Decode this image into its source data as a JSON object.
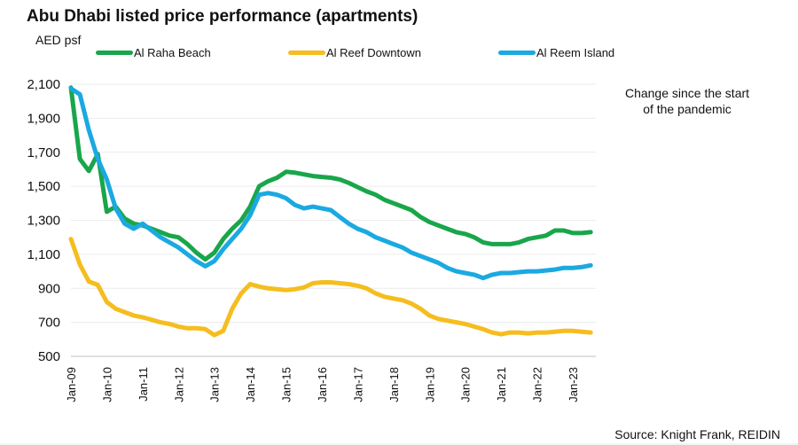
{
  "chart_data": {
    "type": "line",
    "title": "Abu Dhabi listed price performance (apartments)",
    "ylabel": "AED psf",
    "xlabel": "",
    "ylim": [
      500,
      2100
    ],
    "yticks": [
      2100,
      1900,
      1700,
      1500,
      1300,
      1100,
      900,
      700,
      500
    ],
    "ytick_labels": [
      "2,100",
      "1,900",
      "1,700",
      "1,500",
      "1,300",
      "1,100",
      "900",
      "700",
      "500"
    ],
    "xlim_years": [
      2009.0,
      2023.6
    ],
    "xticks": [
      "Jan-09",
      "Jan-10",
      "Jan-11",
      "Jan-12",
      "Jan-13",
      "Jan-14",
      "Jan-15",
      "Jan-16",
      "Jan-17",
      "Jan-18",
      "Jan-19",
      "Jan-20",
      "Jan-21",
      "Jan-22",
      "Jan-23"
    ],
    "grid": true,
    "legend_position": "top",
    "x": [
      2009.0,
      2009.25,
      2009.5,
      2009.75,
      2010.0,
      2010.25,
      2010.5,
      2010.75,
      2011.0,
      2011.25,
      2011.5,
      2011.75,
      2012.0,
      2012.25,
      2012.5,
      2012.75,
      2013.0,
      2013.25,
      2013.5,
      2013.75,
      2014.0,
      2014.25,
      2014.5,
      2014.75,
      2015.0,
      2015.25,
      2015.5,
      2015.75,
      2016.0,
      2016.25,
      2016.5,
      2016.75,
      2017.0,
      2017.25,
      2017.5,
      2017.75,
      2018.0,
      2018.25,
      2018.5,
      2018.75,
      2019.0,
      2019.25,
      2019.5,
      2019.75,
      2020.0,
      2020.25,
      2020.5,
      2020.75,
      2021.0,
      2021.25,
      2021.5,
      2021.75,
      2022.0,
      2022.25,
      2022.5,
      2022.75,
      2023.0,
      2023.25,
      2023.5
    ],
    "series": [
      {
        "name": "Al Raha Beach",
        "color": "#19a64a",
        "values": [
          2080,
          1660,
          1590,
          1690,
          1350,
          1380,
          1310,
          1280,
          1270,
          1250,
          1230,
          1210,
          1200,
          1160,
          1110,
          1070,
          1110,
          1190,
          1250,
          1300,
          1380,
          1500,
          1530,
          1550,
          1585,
          1580,
          1570,
          1560,
          1555,
          1550,
          1540,
          1520,
          1495,
          1470,
          1450,
          1420,
          1400,
          1380,
          1360,
          1320,
          1290,
          1270,
          1250,
          1230,
          1220,
          1200,
          1170,
          1160,
          1160,
          1160,
          1170,
          1190,
          1200,
          1210,
          1240,
          1240,
          1225,
          1225,
          1230
        ]
      },
      {
        "name": "Al Reef Downtown",
        "color": "#f5bd1f",
        "values": [
          1190,
          1040,
          940,
          920,
          820,
          780,
          760,
          740,
          730,
          715,
          700,
          690,
          675,
          665,
          665,
          660,
          625,
          650,
          780,
          870,
          925,
          910,
          900,
          895,
          890,
          895,
          905,
          930,
          935,
          935,
          930,
          925,
          915,
          900,
          870,
          850,
          840,
          830,
          810,
          780,
          740,
          720,
          710,
          700,
          690,
          675,
          660,
          640,
          630,
          640,
          640,
          635,
          640,
          640,
          645,
          650,
          650,
          645,
          640
        ]
      },
      {
        "name": "Al Reem Island",
        "color": "#1ba9e1",
        "values": [
          2075,
          2040,
          1830,
          1660,
          1540,
          1370,
          1280,
          1250,
          1280,
          1240,
          1200,
          1170,
          1140,
          1100,
          1060,
          1030,
          1060,
          1130,
          1190,
          1250,
          1330,
          1450,
          1460,
          1450,
          1430,
          1390,
          1370,
          1380,
          1370,
          1360,
          1320,
          1280,
          1250,
          1230,
          1200,
          1180,
          1160,
          1140,
          1110,
          1090,
          1070,
          1050,
          1020,
          1000,
          990,
          980,
          960,
          980,
          990,
          990,
          995,
          1000,
          1000,
          1005,
          1010,
          1020,
          1020,
          1025,
          1035
        ]
      }
    ],
    "annotation": "Change since the start of the pandemic",
    "source": "Source: Knight Frank, REIDIN"
  }
}
